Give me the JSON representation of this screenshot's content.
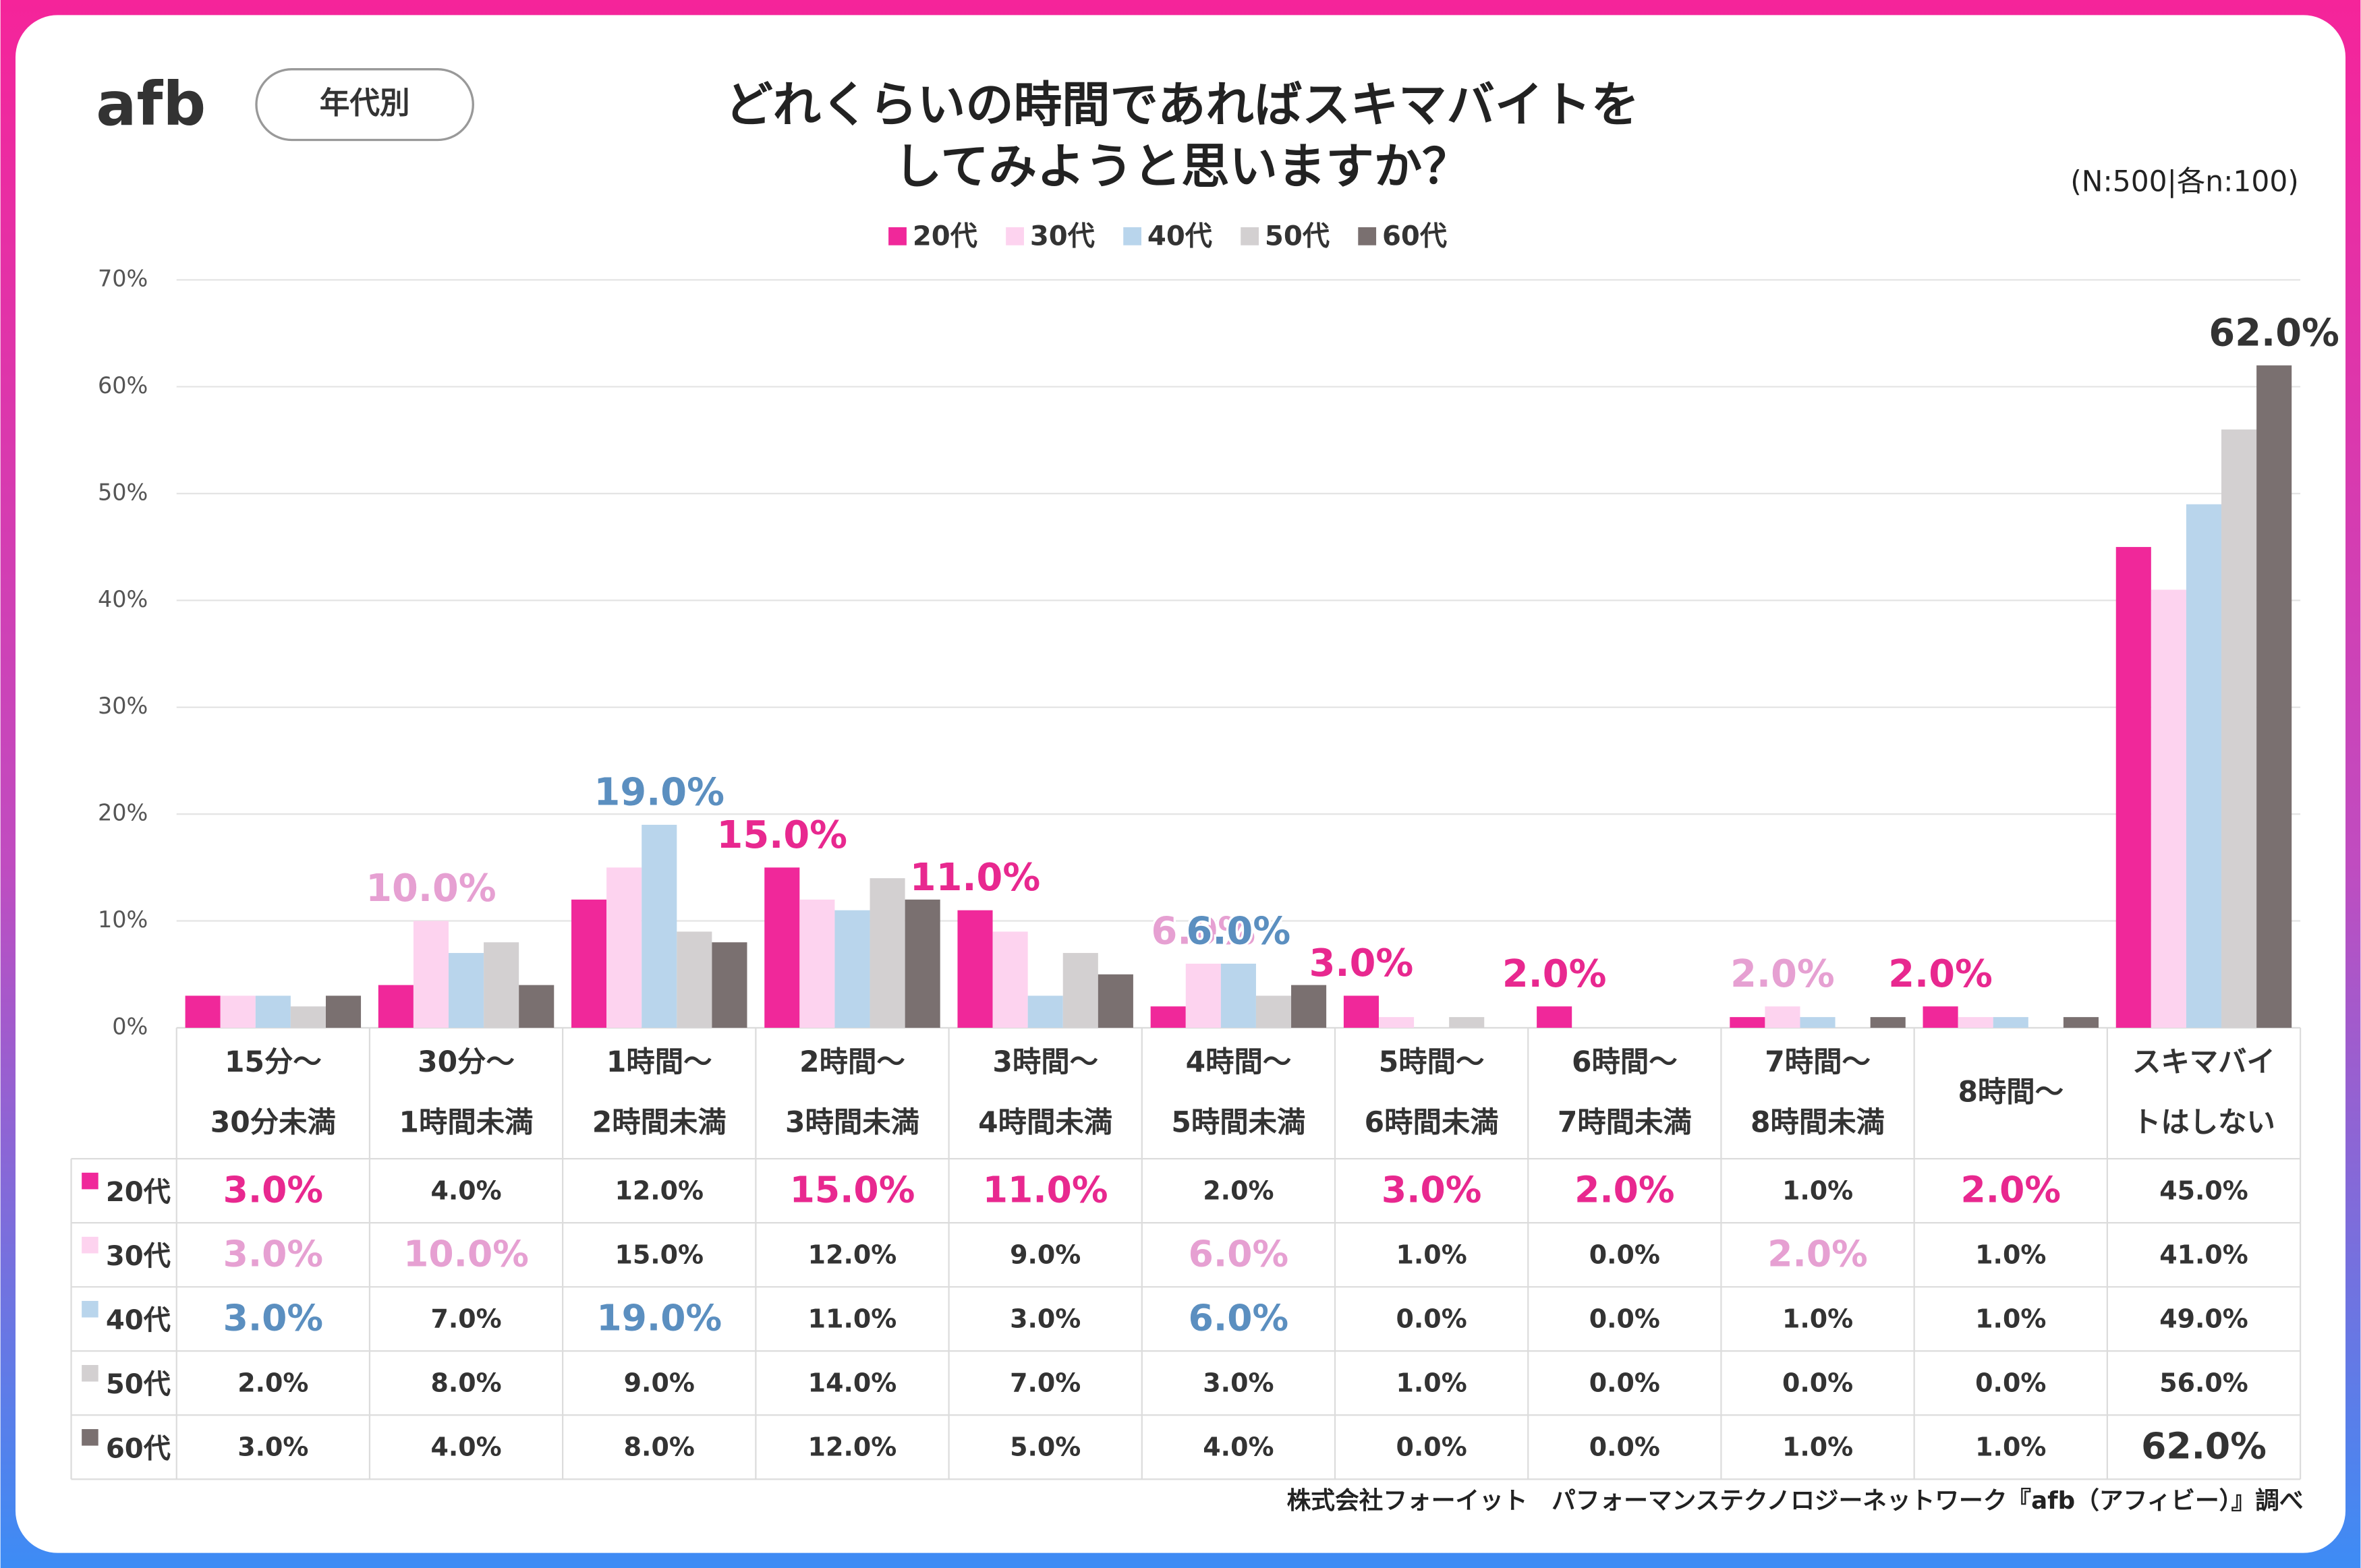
{
  "chart_data": {
    "type": "bar",
    "logo": "afb",
    "badge": "年代別",
    "title": [
      "どれくらいの時間であればスキマバイトを",
      "してみようと思いますか？"
    ],
    "note": "(N:500|各n:100)",
    "source": "株式会社フォーイット　パフォーマンステクノロジーネットワーク『afb（アフィビー）』調べ",
    "categories": [
      [
        "15分～",
        "30分未満"
      ],
      [
        "30分～",
        "1時間未満"
      ],
      [
        "1時間～",
        "2時間未満"
      ],
      [
        "2時間～",
        "3時間未満"
      ],
      [
        "3時間～",
        "4時間未満"
      ],
      [
        "4時間～",
        "5時間未満"
      ],
      [
        "5時間～",
        "6時間未満"
      ],
      [
        "6時間～",
        "7時間未満"
      ],
      [
        "7時間～",
        "8時間未満"
      ],
      [
        "8時間～"
      ],
      [
        "スキマバイ",
        "トはしない"
      ]
    ],
    "ylim": [
      0,
      70
    ],
    "yticks": [
      {
        "value": 0,
        "label": "0%"
      },
      {
        "value": 10,
        "label": "10%"
      },
      {
        "value": 20,
        "label": "20%"
      },
      {
        "value": 30,
        "label": "30%"
      },
      {
        "value": 40,
        "label": "40%"
      },
      {
        "value": 50,
        "label": "50%"
      },
      {
        "value": 60,
        "label": "60%"
      },
      {
        "value": 70,
        "label": "70%"
      }
    ],
    "grid": true,
    "legend": "top",
    "series": [
      {
        "name": "20代",
        "color": "#f0289a",
        "label_color": "#e8288f",
        "values": [
          3,
          4,
          12,
          15,
          11,
          2,
          3,
          2,
          1,
          2,
          45
        ],
        "value_labels": [
          "3.0%",
          "4.0%",
          "12.0%",
          "15.0%",
          "11.0%",
          "2.0%",
          "3.0%",
          "2.0%",
          "1.0%",
          "2.0%",
          "45.0%"
        ],
        "highlight": [
          true,
          false,
          false,
          true,
          true,
          false,
          true,
          true,
          false,
          true,
          false
        ],
        "chart_labels": [
          false,
          false,
          false,
          true,
          true,
          false,
          true,
          true,
          false,
          true,
          false
        ]
      },
      {
        "name": "30代",
        "color": "#fdd3ef",
        "label_color": "#e6a0d2",
        "values": [
          3,
          10,
          15,
          12,
          9,
          6,
          1,
          0,
          2,
          1,
          41
        ],
        "value_labels": [
          "3.0%",
          "10.0%",
          "15.0%",
          "12.0%",
          "9.0%",
          "6.0%",
          "1.0%",
          "0.0%",
          "2.0%",
          "1.0%",
          "41.0%"
        ],
        "highlight": [
          true,
          true,
          false,
          false,
          false,
          true,
          false,
          false,
          true,
          false,
          false
        ],
        "chart_labels": [
          false,
          true,
          false,
          false,
          false,
          true,
          false,
          false,
          true,
          false,
          false
        ]
      },
      {
        "name": "40代",
        "color": "#b9d5ec",
        "label_color": "#5b8fc0",
        "values": [
          3,
          7,
          19,
          11,
          3,
          6,
          0,
          0,
          1,
          1,
          49
        ],
        "value_labels": [
          "3.0%",
          "7.0%",
          "19.0%",
          "11.0%",
          "3.0%",
          "6.0%",
          "0.0%",
          "0.0%",
          "1.0%",
          "1.0%",
          "49.0%"
        ],
        "highlight": [
          true,
          false,
          true,
          false,
          false,
          true,
          false,
          false,
          false,
          false,
          false
        ],
        "chart_labels": [
          false,
          false,
          true,
          false,
          false,
          true,
          false,
          false,
          false,
          false,
          false
        ]
      },
      {
        "name": "50代",
        "color": "#d3d0d1",
        "label_color": "#555555",
        "values": [
          2,
          8,
          9,
          14,
          7,
          3,
          1,
          0,
          0,
          0,
          56
        ],
        "value_labels": [
          "2.0%",
          "8.0%",
          "9.0%",
          "14.0%",
          "7.0%",
          "3.0%",
          "1.0%",
          "0.0%",
          "0.0%",
          "0.0%",
          "56.0%"
        ],
        "highlight": [
          false,
          false,
          false,
          false,
          false,
          false,
          false,
          false,
          false,
          false,
          false
        ],
        "chart_labels": [
          false,
          false,
          false,
          false,
          false,
          false,
          false,
          false,
          false,
          false,
          false
        ]
      },
      {
        "name": "60代",
        "color": "#7a7070",
        "label_color": "#333333",
        "values": [
          3,
          4,
          8,
          12,
          5,
          4,
          0,
          0,
          1,
          1,
          62
        ],
        "value_labels": [
          "3.0%",
          "4.0%",
          "8.0%",
          "12.0%",
          "5.0%",
          "4.0%",
          "0.0%",
          "0.0%",
          "1.0%",
          "1.0%",
          "62.0%"
        ],
        "highlight": [
          false,
          false,
          false,
          false,
          false,
          false,
          false,
          false,
          false,
          false,
          true
        ],
        "chart_labels": [
          false,
          false,
          false,
          false,
          false,
          false,
          false,
          false,
          false,
          false,
          true
        ]
      }
    ]
  }
}
